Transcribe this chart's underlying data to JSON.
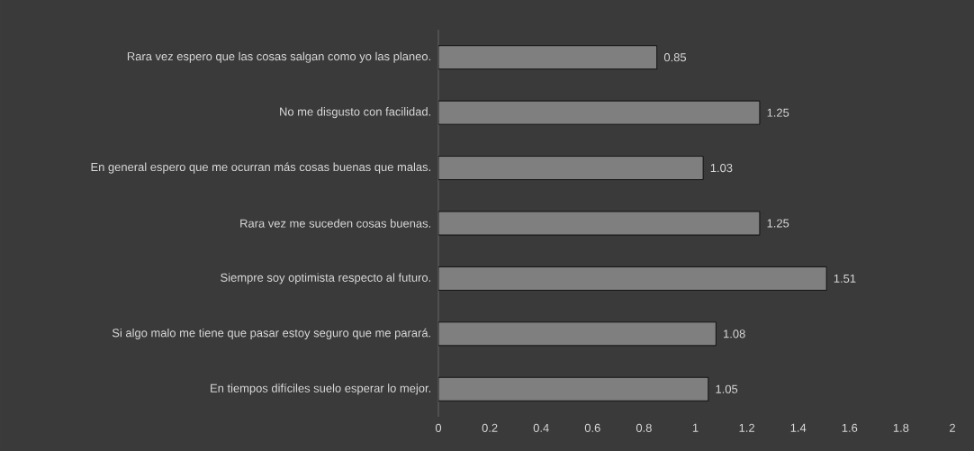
{
  "chart_data": {
    "type": "bar",
    "orientation": "horizontal",
    "categories": [
      "Rara vez espero que las cosas salgan como yo las planeo.",
      "No me disgusto con facilidad.",
      "En general espero que me ocurran más cosas buenas que malas.",
      "Rara vez me suceden cosas buenas.",
      "Siempre soy optimista respecto al futuro.",
      "Si algo malo me tiene que pasar estoy seguro que me parará.",
      "En tiempos difíciles suelo esperar lo mejor."
    ],
    "values": [
      0.85,
      1.25,
      1.03,
      1.25,
      1.51,
      1.08,
      1.05
    ],
    "color": "#7f7f7f",
    "xlim": [
      0,
      2
    ],
    "xticks": [
      0,
      0.2,
      0.4,
      0.6,
      0.8,
      1,
      1.2,
      1.4,
      1.6,
      1.8,
      2
    ],
    "data_labels": true
  }
}
